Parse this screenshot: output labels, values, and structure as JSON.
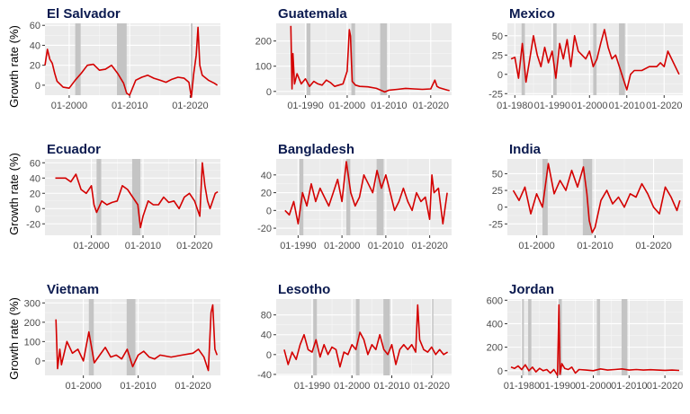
{
  "colors": {
    "line": "#d40000",
    "panel": "#ebebeb",
    "grid_major": "#ffffff",
    "recession": "#c4c4c4",
    "title": "#0b1a4f"
  },
  "y_axis_label": "Growth rate (%)",
  "chart_data": [
    {
      "type": "line",
      "title": "El Salvador",
      "xlim": [
        1996,
        2025
      ],
      "ylim": [
        -10,
        62
      ],
      "x_ticks": [
        2000,
        2010,
        2020
      ],
      "x_tick_labels": [
        "01-2000",
        "01-2010",
        "01-2020"
      ],
      "y_ticks": [
        0,
        20,
        40,
        60
      ],
      "y_tick_labels": [
        "0",
        "20",
        "40",
        "60"
      ],
      "shaded": [
        [
          2001.0,
          2001.9
        ],
        [
          2007.9,
          2009.5
        ],
        [
          2020.1,
          2020.4
        ]
      ],
      "x": [
        1996,
        1996.4,
        1996.8,
        1997.2,
        1997.6,
        1998,
        1999,
        2000,
        2001,
        2002,
        2003,
        2004,
        2005,
        2006,
        2007,
        2008,
        2009,
        2009.5,
        2010,
        2011,
        2012,
        2013,
        2014,
        2015,
        2016,
        2017,
        2018,
        2019,
        2019.8,
        2020.2,
        2020.6,
        2021,
        2021.3,
        2021.6,
        2022,
        2023,
        2024,
        2024.5
      ],
      "y": [
        20,
        36,
        26,
        22,
        12,
        4,
        -2,
        -3,
        5,
        12,
        20,
        21,
        15,
        16,
        20,
        12,
        2,
        -8,
        -10,
        5,
        8,
        10,
        7,
        5,
        3,
        6,
        8,
        7,
        3,
        -12,
        12,
        30,
        58,
        20,
        10,
        5,
        2,
        0
      ]
    },
    {
      "type": "line",
      "title": "Guatemala",
      "xlim": [
        1983,
        2025
      ],
      "ylim": [
        -15,
        270
      ],
      "x_ticks": [
        1990,
        2000,
        2010,
        2020
      ],
      "x_tick_labels": [
        "01-1990",
        "01-2000",
        "01-2010",
        "01-2020"
      ],
      "y_ticks": [
        0,
        100,
        200
      ],
      "y_tick_labels": [
        "0",
        "100",
        "200"
      ],
      "shaded": [
        [
          1990.3,
          1991.2
        ],
        [
          2001.0,
          2001.9
        ],
        [
          2007.9,
          2009.5
        ]
      ],
      "x": [
        1986.5,
        1986.8,
        1987,
        1987.4,
        1988,
        1989,
        1990,
        1991,
        1992,
        1993,
        1994,
        1995,
        1996,
        1997,
        1998,
        1999,
        2000,
        2000.5,
        2000.8,
        2001.2,
        2002,
        2003,
        2005,
        2007,
        2008,
        2009,
        2010,
        2012,
        2014,
        2016,
        2018,
        2020,
        2021,
        2021.5,
        2022,
        2023,
        2024,
        2024.5
      ],
      "y": [
        260,
        10,
        150,
        30,
        70,
        30,
        50,
        20,
        40,
        30,
        25,
        45,
        35,
        20,
        25,
        30,
        80,
        245,
        220,
        40,
        25,
        20,
        18,
        12,
        5,
        -2,
        5,
        8,
        12,
        10,
        8,
        10,
        45,
        20,
        15,
        10,
        5,
        3
      ]
    },
    {
      "type": "line",
      "title": "Mexico",
      "xlim": [
        1978,
        2025
      ],
      "ylim": [
        -27,
        66
      ],
      "x_ticks": [
        1980,
        1990,
        2000,
        2010,
        2020
      ],
      "x_tick_labels": [
        "01-1980",
        "01-1990",
        "01-2000",
        "01-2010",
        "01-2020"
      ],
      "y_ticks": [
        -25,
        0,
        25,
        50
      ],
      "y_tick_labels": [
        "-25",
        "0",
        "25",
        "50"
      ],
      "shaded": [
        [
          1981.8,
          1982.7
        ],
        [
          1990.3,
          1991.2
        ],
        [
          2001.0,
          2001.9
        ],
        [
          2007.9,
          2009.5
        ]
      ],
      "x": [
        1979,
        1980,
        1981,
        1982,
        1983,
        1984,
        1985,
        1986,
        1987,
        1988,
        1989,
        1990,
        1991,
        1992,
        1993,
        1994,
        1995,
        1996,
        1997,
        1998,
        1999,
        2000,
        2001,
        2002,
        2003,
        2004,
        2005,
        2006,
        2007,
        2008,
        2009,
        2010,
        2011,
        2012,
        2014,
        2016,
        2018,
        2019,
        2020,
        2021,
        2022,
        2023,
        2024
      ],
      "y": [
        20,
        22,
        -5,
        40,
        -10,
        20,
        50,
        25,
        10,
        35,
        15,
        30,
        -5,
        40,
        20,
        45,
        10,
        50,
        30,
        25,
        20,
        30,
        10,
        20,
        40,
        58,
        35,
        20,
        25,
        10,
        -5,
        -20,
        0,
        5,
        5,
        10,
        10,
        15,
        10,
        30,
        20,
        10,
        0
      ]
    },
    {
      "type": "line",
      "title": "Ecuador",
      "xlim": [
        1991,
        2025
      ],
      "ylim": [
        -35,
        65
      ],
      "x_ticks": [
        2000,
        2010,
        2020
      ],
      "x_tick_labels": [
        "01-2000",
        "01-2010",
        "01-2020"
      ],
      "y_ticks": [
        -20,
        0,
        20,
        40,
        60
      ],
      "y_tick_labels": [
        "-20",
        "0",
        "20",
        "40",
        "60"
      ],
      "shaded": [
        [
          2001.0,
          2001.9
        ],
        [
          2007.9,
          2009.5
        ],
        [
          2020.1,
          2020.4
        ]
      ],
      "x": [
        1993,
        1994,
        1995,
        1996,
        1997,
        1998,
        1999,
        2000,
        2000.5,
        2001,
        2002,
        2003,
        2004,
        2005,
        2006,
        2007,
        2008,
        2009,
        2009.5,
        2010,
        2011,
        2012,
        2013,
        2014,
        2015,
        2016,
        2017,
        2018,
        2019,
        2020,
        2021,
        2021.5,
        2022,
        2022.5,
        2023,
        2024,
        2024.5
      ],
      "y": [
        40,
        40,
        40,
        35,
        45,
        25,
        20,
        30,
        5,
        -5,
        10,
        5,
        8,
        10,
        30,
        25,
        15,
        5,
        -25,
        -10,
        10,
        5,
        5,
        15,
        8,
        10,
        0,
        15,
        20,
        10,
        -10,
        60,
        30,
        10,
        0,
        20,
        22
      ]
    },
    {
      "type": "line",
      "title": "Bangladesh",
      "xlim": [
        1985,
        2025
      ],
      "ylim": [
        -28,
        58
      ],
      "x_ticks": [
        1990,
        2000,
        2010,
        2020
      ],
      "x_tick_labels": [
        "01-1990",
        "01-2000",
        "01-2010",
        "01-2020"
      ],
      "y_ticks": [
        -20,
        0,
        20,
        40
      ],
      "y_tick_labels": [
        "-20",
        "0",
        "20",
        "40"
      ],
      "shaded": [
        [
          1990.3,
          1991.2
        ],
        [
          2001.0,
          2001.9
        ],
        [
          2007.9,
          2009.5
        ]
      ],
      "x": [
        1987,
        1988,
        1989,
        1990,
        1991,
        1992,
        1993,
        1994,
        1995,
        1996,
        1997,
        1998,
        1999,
        2000,
        2001,
        2002,
        2003,
        2004,
        2005,
        2006,
        2007,
        2008,
        2009,
        2010,
        2011,
        2012,
        2013,
        2014,
        2015,
        2016,
        2017,
        2018,
        2019,
        2020,
        2020.5,
        2021,
        2022,
        2023,
        2024
      ],
      "y": [
        0,
        -5,
        10,
        -15,
        20,
        5,
        30,
        10,
        25,
        15,
        5,
        20,
        35,
        10,
        55,
        20,
        5,
        15,
        40,
        30,
        20,
        45,
        25,
        40,
        20,
        0,
        10,
        25,
        10,
        0,
        20,
        10,
        15,
        -10,
        40,
        20,
        25,
        -15,
        20
      ]
    },
    {
      "type": "line",
      "title": "India",
      "xlim": [
        1995,
        2025
      ],
      "ylim": [
        -42,
        72
      ],
      "x_ticks": [
        2000,
        2010,
        2020
      ],
      "x_tick_labels": [
        "01-2000",
        "01-2010",
        "01-2020"
      ],
      "y_ticks": [
        -25,
        0,
        25,
        50
      ],
      "y_tick_labels": [
        "-25",
        "0",
        "25",
        "50"
      ],
      "shaded": [
        [
          2001.0,
          2001.9
        ],
        [
          2007.9,
          2009.5
        ]
      ],
      "x": [
        1996,
        1997,
        1998,
        1999,
        2000,
        2001,
        2002,
        2003,
        2004,
        2005,
        2006,
        2007,
        2008,
        2008.6,
        2009,
        2009.5,
        2010,
        2011,
        2012,
        2013,
        2014,
        2015,
        2016,
        2017,
        2018,
        2019,
        2020,
        2021,
        2022,
        2023,
        2024,
        2024.5
      ],
      "y": [
        25,
        10,
        30,
        -10,
        20,
        0,
        65,
        20,
        40,
        25,
        55,
        30,
        60,
        20,
        -20,
        -38,
        -30,
        10,
        25,
        5,
        15,
        0,
        20,
        15,
        35,
        20,
        0,
        -10,
        30,
        15,
        -5,
        10
      ]
    },
    {
      "type": "line",
      "title": "Vietnam",
      "xlim": [
        1993,
        2025
      ],
      "ylim": [
        -75,
        320
      ],
      "x_ticks": [
        2000,
        2010,
        2020
      ],
      "x_tick_labels": [
        "01-2000",
        "01-2010",
        "01-2020"
      ],
      "y_ticks": [
        0,
        100,
        200,
        300
      ],
      "y_tick_labels": [
        "0",
        "100",
        "200",
        "300"
      ],
      "shaded": [
        [
          2001.0,
          2001.9
        ],
        [
          2007.9,
          2009.5
        ]
      ],
      "x": [
        1995,
        1995.3,
        1995.7,
        1996,
        1997,
        1998,
        1999,
        2000,
        2001,
        2002,
        2003,
        2004,
        2005,
        2006,
        2007,
        2008,
        2009,
        2010,
        2011,
        2012,
        2013,
        2014,
        2016,
        2018,
        2020,
        2021,
        2022,
        2022.8,
        2023.3,
        2023.6,
        2024,
        2024.4
      ],
      "y": [
        215,
        -40,
        60,
        -20,
        100,
        40,
        60,
        0,
        150,
        -10,
        30,
        70,
        20,
        30,
        10,
        60,
        -30,
        30,
        50,
        20,
        10,
        30,
        20,
        30,
        40,
        60,
        20,
        -50,
        250,
        290,
        60,
        30
      ]
    },
    {
      "type": "line",
      "title": "Lesotho",
      "xlim": [
        1981,
        2025
      ],
      "ylim": [
        -42,
        112
      ],
      "x_ticks": [
        1990,
        2000,
        2010,
        2020
      ],
      "x_tick_labels": [
        "01-1990",
        "01-2000",
        "01-2010",
        "01-2020"
      ],
      "y_ticks": [
        -40,
        0,
        40,
        80
      ],
      "y_tick_labels": [
        "-40",
        "0",
        "40",
        "80"
      ],
      "shaded": [
        [
          1990.3,
          1991.2
        ],
        [
          2001.0,
          2001.9
        ],
        [
          2007.9,
          2009.5
        ],
        [
          2020.1,
          2020.4
        ]
      ],
      "x": [
        1983,
        1984,
        1985,
        1986,
        1987,
        1988,
        1989,
        1990,
        1991,
        1992,
        1993,
        1994,
        1995,
        1996,
        1997,
        1998,
        1999,
        2000,
        2001,
        2002,
        2003,
        2004,
        2005,
        2006,
        2007,
        2008,
        2009,
        2010,
        2011,
        2012,
        2013,
        2014,
        2015,
        2016,
        2016.5,
        2017,
        2018,
        2019,
        2020,
        2021,
        2022,
        2023,
        2024
      ],
      "y": [
        10,
        -20,
        5,
        -10,
        20,
        40,
        10,
        5,
        30,
        -5,
        20,
        0,
        15,
        10,
        -25,
        5,
        0,
        20,
        10,
        45,
        30,
        0,
        20,
        10,
        40,
        10,
        0,
        20,
        -20,
        10,
        20,
        10,
        20,
        5,
        100,
        30,
        10,
        5,
        15,
        0,
        10,
        0,
        5
      ]
    },
    {
      "type": "line",
      "title": "Jordan",
      "xlim": [
        1976,
        2025
      ],
      "ylim": [
        -40,
        610
      ],
      "x_ticks": [
        1980,
        1990,
        2000,
        2010,
        2020
      ],
      "x_tick_labels": [
        "01-1980",
        "01-1990",
        "01-2000",
        "01-2010",
        "01-2020"
      ],
      "y_ticks": [
        0,
        200,
        400,
        600
      ],
      "y_tick_labels": [
        "0",
        "200",
        "400",
        "600"
      ],
      "shaded": [
        [
          1980.1,
          1980.6
        ],
        [
          1981.8,
          1982.7
        ],
        [
          1990.3,
          1991.2
        ],
        [
          2001.0,
          2001.9
        ],
        [
          2007.9,
          2009.5
        ]
      ],
      "x": [
        1977,
        1978,
        1979,
        1980,
        1981,
        1982,
        1983,
        1984,
        1985,
        1986,
        1987,
        1988,
        1989,
        1990,
        1990.4,
        1990.7,
        1991.2,
        1992,
        1993,
        1994,
        1995,
        1996,
        1998,
        2000,
        2002,
        2004,
        2006,
        2008,
        2010,
        2012,
        2014,
        2016,
        2018,
        2020,
        2022,
        2024
      ],
      "y": [
        30,
        20,
        40,
        10,
        50,
        0,
        30,
        -10,
        20,
        0,
        10,
        -20,
        10,
        -40,
        560,
        -30,
        60,
        20,
        10,
        30,
        -20,
        10,
        5,
        0,
        15,
        5,
        10,
        15,
        5,
        10,
        5,
        8,
        5,
        3,
        5,
        2
      ]
    }
  ]
}
